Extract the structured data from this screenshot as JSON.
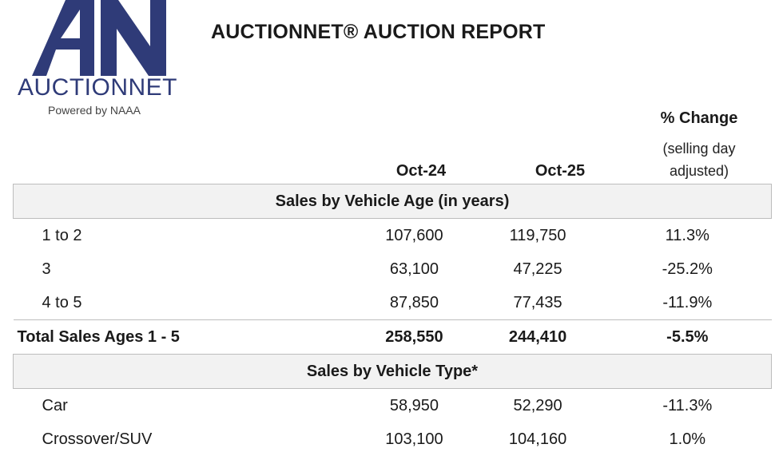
{
  "logo": {
    "mark": "AN",
    "name": "AUCTIONNET",
    "tagline": "Powered by NAAA",
    "color": "#2f3b78"
  },
  "report_title": "AUCTIONNET® AUCTION REPORT",
  "columns": {
    "oct24": "Oct-24",
    "oct25": "Oct-25",
    "change": "% Change",
    "change_sub_1": "(selling day",
    "change_sub_2": "adjusted)"
  },
  "sections": [
    {
      "title": "Sales by Vehicle Age (in years)",
      "rows": [
        {
          "label": "1 to 2",
          "oct24": "107,600",
          "oct25": "119,750",
          "change": "11.3%"
        },
        {
          "label": "3",
          "oct24": "63,100",
          "oct25": "47,225",
          "change": "-25.2%"
        },
        {
          "label": "4 to 5",
          "oct24": "87,850",
          "oct25": "77,435",
          "change": "-11.9%"
        }
      ],
      "total": {
        "label": "Total Sales Ages 1 - 5",
        "oct24": "258,550",
        "oct25": "244,410",
        "change": "-5.5%"
      }
    },
    {
      "title": "Sales by Vehicle Type*",
      "rows": [
        {
          "label": "Car",
          "oct24": "58,950",
          "oct25": "52,290",
          "change": "-11.3%"
        },
        {
          "label": "Crossover/SUV",
          "oct24": "103,100",
          "oct25": "104,160",
          "change": "1.0%"
        }
      ]
    }
  ]
}
